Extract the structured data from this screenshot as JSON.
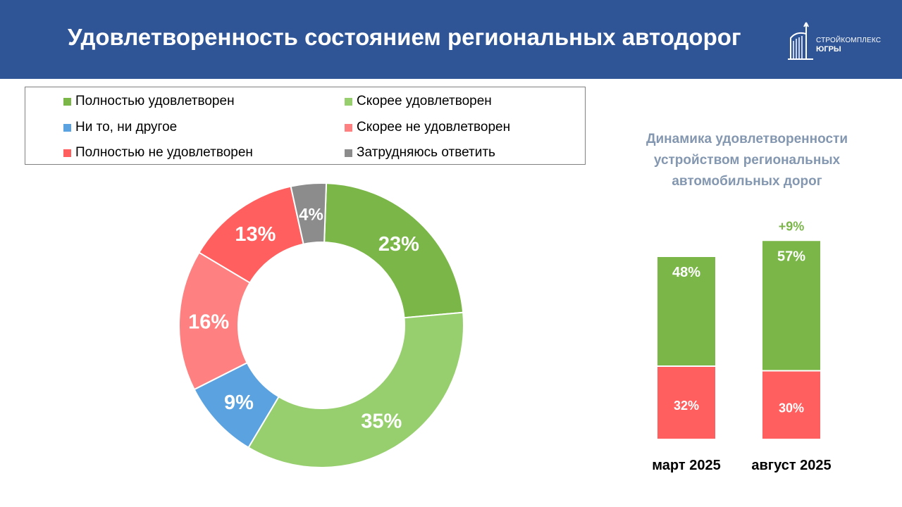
{
  "header": {
    "title": "Удовлетворенность состоянием региональных автодорог",
    "logo_line1": "СТРОЙКОМПЛЕКС",
    "logo_line2": "ЮГРЫ"
  },
  "colors": {
    "header_bg": "#2f5597",
    "full_sat": "#7ab648",
    "rather_sat": "#97cf6f",
    "neither": "#5ba3e0",
    "rather_unsat": "#ff8080",
    "full_unsat": "#ff5f5f",
    "hard": "#8c8c8c",
    "dynamics_title": "#8497b0"
  },
  "legend": [
    {
      "label": "Полностью удовлетворен",
      "color": "#7ab648"
    },
    {
      "label": "Скорее удовлетворен",
      "color": "#97cf6f"
    },
    {
      "label": "Ни то, ни другое",
      "color": "#5ba3e0"
    },
    {
      "label": "Скорее не удовлетворен",
      "color": "#ff8080"
    },
    {
      "label": "Полностью не удовлетворен",
      "color": "#ff5f5f"
    },
    {
      "label": "Затрудняюсь ответить",
      "color": "#8c8c8c"
    }
  ],
  "chart_data": [
    {
      "type": "pie",
      "donut": true,
      "legend_position": "top",
      "slices": [
        {
          "name": "Полностью удовлетворен",
          "value": 23,
          "label": "23%",
          "color": "#7ab648"
        },
        {
          "name": "Скорее удовлетворен",
          "value": 35,
          "label": "35%",
          "color": "#97cf6f"
        },
        {
          "name": "Ни то, ни другое",
          "value": 9,
          "label": "9%",
          "color": "#5ba3e0"
        },
        {
          "name": "Скорее не удовлетворен",
          "value": 16,
          "label": "16%",
          "color": "#ff8080"
        },
        {
          "name": "Полностью не удовлетворен",
          "value": 13,
          "label": "13%",
          "color": "#ff5f5f"
        },
        {
          "name": "Затрудняюсь ответить",
          "value": 4,
          "label": "4%",
          "color": "#8c8c8c"
        }
      ]
    },
    {
      "type": "bar",
      "stacked": true,
      "title": "Динамика удовлетворенности устройством региональных автомобильных дорог",
      "categories": [
        "март 2025",
        "август 2025"
      ],
      "series": [
        {
          "values": [
            48,
            57
          ],
          "labels": [
            "48%",
            "57%"
          ],
          "color": "#7ab648"
        },
        {
          "values": [
            32,
            30
          ],
          "labels": [
            "32%",
            "30%"
          ],
          "color": "#ff5f5f"
        }
      ],
      "annotations": [
        {
          "category": "август 2025",
          "text": "+9%",
          "color": "#7ab648"
        }
      ]
    }
  ]
}
